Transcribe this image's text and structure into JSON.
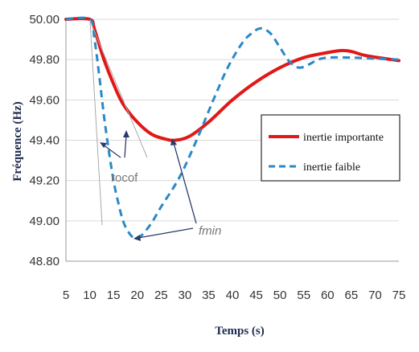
{
  "chart_data": {
    "type": "line",
    "xlabel": "Temps (s)",
    "ylabel": "Fréquence (Hz)",
    "xlim": [
      5,
      75
    ],
    "ylim": [
      48.8,
      50.0
    ],
    "x_ticks": [
      "5",
      "10",
      "15",
      "20",
      "25",
      "30",
      "35",
      "40",
      "45",
      "50",
      "55",
      "60",
      "65",
      "70",
      "75"
    ],
    "y_ticks": [
      "48.80",
      "49.00",
      "49.20",
      "49.40",
      "49.60",
      "49.80",
      "50.00"
    ],
    "grid": "horizontal",
    "legend_position": "right",
    "series": [
      {
        "name": "inertie importante",
        "color": "#e01818",
        "style": "solid",
        "x": [
          5,
          10,
          11,
          13,
          15,
          17,
          20,
          23,
          26,
          28,
          31,
          35,
          40,
          45,
          50,
          55,
          60,
          63,
          65,
          68,
          72,
          75
        ],
        "y": [
          50.0,
          50.0,
          49.95,
          49.8,
          49.68,
          49.58,
          49.49,
          49.43,
          49.405,
          49.4,
          49.42,
          49.49,
          49.6,
          49.69,
          49.76,
          49.81,
          49.835,
          49.845,
          49.84,
          49.82,
          49.805,
          49.795
        ]
      },
      {
        "name": "inertie faible",
        "color": "#2a88c8",
        "style": "dashed",
        "x": [
          5,
          10,
          11,
          12,
          13,
          14,
          15,
          16,
          17,
          18,
          19,
          20,
          21,
          23,
          25,
          28,
          30,
          33,
          36,
          39,
          42,
          44,
          46,
          48,
          50,
          52,
          54,
          56,
          58,
          60,
          65,
          70,
          75
        ],
        "y": [
          50.0,
          50.0,
          49.9,
          49.72,
          49.52,
          49.35,
          49.2,
          49.09,
          49.0,
          48.95,
          48.92,
          48.915,
          48.93,
          48.99,
          49.07,
          49.18,
          49.27,
          49.43,
          49.6,
          49.76,
          49.88,
          49.93,
          49.955,
          49.93,
          49.86,
          49.79,
          49.76,
          49.775,
          49.8,
          49.81,
          49.81,
          49.805,
          49.8
        ]
      }
    ],
    "annotations": [
      "rocof",
      "fmin"
    ]
  }
}
